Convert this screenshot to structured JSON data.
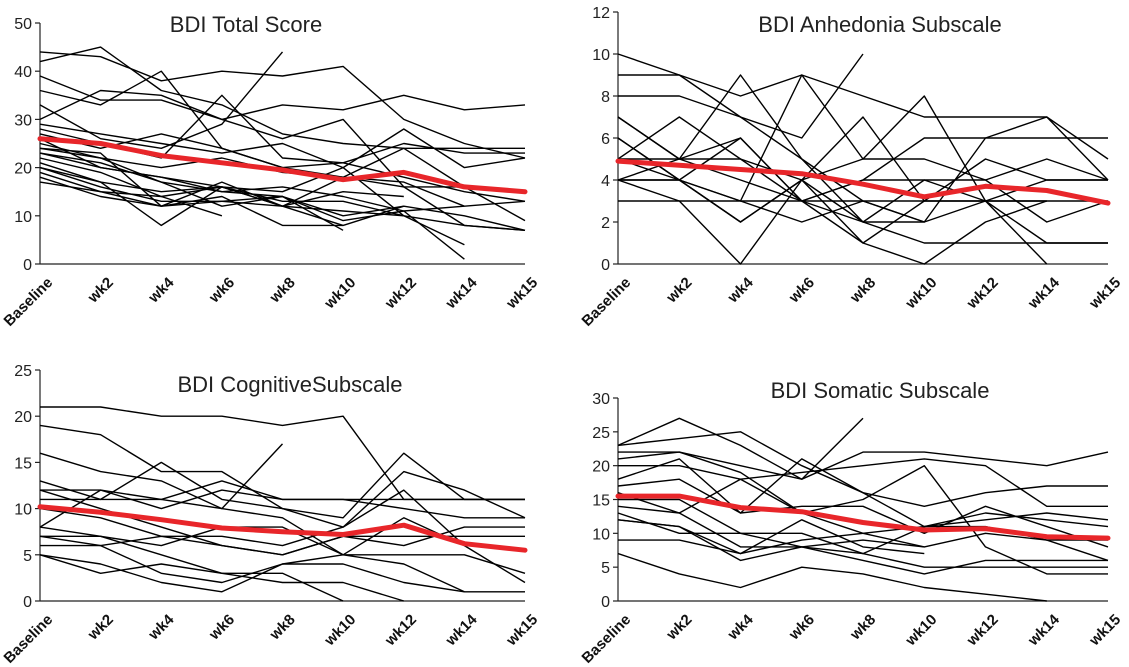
{
  "colors": {
    "individual": "#000000",
    "mean": "#e8262a"
  },
  "chart_data": [
    {
      "type": "line",
      "title": "BDI Total Score",
      "categories": [
        "Baseline",
        "wk2",
        "wk4",
        "wk6",
        "wk8",
        "wk10",
        "wk12",
        "wk14",
        "wk15"
      ],
      "ylim": [
        0,
        50
      ],
      "yticks": [
        0,
        10,
        20,
        30,
        40,
        50
      ],
      "mean": [
        26,
        25,
        22.5,
        21,
        19.5,
        17.5,
        19,
        16,
        15
      ],
      "series": [
        [
          44,
          43,
          38,
          40,
          39,
          41,
          30,
          25,
          22
        ],
        [
          42,
          45,
          36,
          33,
          27,
          25,
          24,
          24,
          24
        ],
        [
          39,
          34,
          34,
          30,
          26,
          30,
          16,
          8,
          7
        ],
        [
          36,
          33,
          40,
          24,
          20,
          21,
          25,
          23,
          23
        ],
        [
          33,
          26,
          24,
          29,
          44,
          null,
          null,
          null,
          null
        ],
        [
          30,
          36,
          35,
          30,
          33,
          32,
          35,
          32,
          33
        ],
        [
          29,
          27,
          25,
          23,
          25,
          20,
          28,
          20,
          22
        ],
        [
          28,
          25,
          22,
          35,
          22,
          21,
          18,
          15,
          13
        ],
        [
          27,
          24,
          27,
          24,
          20,
          18,
          24,
          16,
          9
        ],
        [
          26,
          20,
          18,
          15,
          14,
          10,
          12,
          10,
          7
        ],
        [
          25,
          22,
          20,
          22,
          19,
          18,
          17,
          12,
          null
        ],
        [
          24,
          22,
          17,
          12,
          14,
          9,
          11,
          12,
          13
        ],
        [
          24,
          23,
          12,
          17,
          12,
          18,
          16,
          16,
          15
        ],
        [
          23,
          20,
          18,
          16,
          13,
          13,
          10,
          8,
          7
        ],
        [
          22,
          19,
          14,
          10,
          null,
          null,
          null,
          null,
          null
        ],
        [
          21,
          17,
          15,
          16,
          12,
          11,
          10,
          null,
          null
        ],
        [
          20,
          17,
          8,
          16,
          12,
          8,
          12,
          null,
          null
        ],
        [
          20,
          16,
          13,
          13,
          12,
          15,
          14,
          null,
          null
        ],
        [
          19,
          15,
          12,
          14,
          8,
          8,
          null,
          null,
          null
        ],
        [
          18,
          14,
          12,
          13,
          14,
          7,
          null,
          null,
          null
        ],
        [
          17,
          15,
          14,
          16,
          15,
          20,
          10,
          4,
          null
        ],
        [
          23,
          21,
          17,
          15,
          16,
          14,
          11,
          1,
          null
        ]
      ]
    },
    {
      "type": "line",
      "title": "BDI Anhedonia Subscale",
      "categories": [
        "Baseline",
        "wk2",
        "wk4",
        "wk6",
        "wk8",
        "wk10",
        "wk12",
        "wk14",
        "wk15"
      ],
      "ylim": [
        0,
        12
      ],
      "yticks": [
        0,
        2,
        4,
        6,
        8,
        10,
        12
      ],
      "mean": [
        4.9,
        4.7,
        4.5,
        4.3,
        3.8,
        3.2,
        3.7,
        3.5,
        2.9
      ],
      "series": [
        [
          10,
          9,
          7,
          5,
          3,
          2,
          6,
          7,
          5
        ],
        [
          9,
          9,
          8,
          9,
          8,
          7,
          7,
          7,
          4
        ],
        [
          8,
          8,
          7,
          6,
          10,
          null,
          null,
          null,
          null
        ],
        [
          7,
          5,
          9,
          5,
          2,
          4,
          4,
          2,
          3
        ],
        [
          6,
          4,
          3,
          9,
          5,
          8,
          3,
          0,
          null
        ],
        [
          5,
          7,
          5,
          4,
          7,
          3,
          5,
          4,
          4
        ],
        [
          5,
          5,
          6,
          3,
          4,
          6,
          6,
          6,
          6
        ],
        [
          4,
          4,
          2,
          4,
          5,
          5,
          4,
          5,
          4
        ],
        [
          4,
          3,
          0,
          4,
          1,
          3,
          3,
          1,
          1
        ],
        [
          3,
          3,
          3,
          3,
          3,
          3,
          3,
          3,
          3
        ],
        [
          4,
          5,
          5,
          3,
          1,
          0,
          2,
          3,
          null
        ],
        [
          5,
          4,
          6,
          3,
          4,
          4,
          3,
          3,
          null
        ],
        [
          6,
          4,
          3,
          2,
          3,
          2,
          3,
          4,
          4
        ],
        [
          4,
          4,
          2,
          4,
          2,
          1,
          1,
          1,
          1
        ],
        [
          7,
          5,
          4,
          3,
          2,
          2,
          null,
          null,
          null
        ]
      ]
    },
    {
      "type": "line",
      "title": "BDI CognitiveSubscale",
      "categories": [
        "Baseline",
        "wk2",
        "wk4",
        "wk6",
        "wk8",
        "wk10",
        "wk12",
        "wk14",
        "wk15"
      ],
      "ylim": [
        0,
        25
      ],
      "yticks": [
        0,
        5,
        10,
        15,
        20,
        25
      ],
      "mean": [
        10.2,
        9.6,
        8.8,
        7.9,
        7.5,
        7.2,
        8.2,
        6.2,
        5.5
      ],
      "series": [
        [
          21,
          21,
          20,
          20,
          19,
          20,
          11,
          11,
          11
        ],
        [
          19,
          18,
          14,
          14,
          10,
          9,
          16,
          11,
          11
        ],
        [
          16,
          14,
          13,
          10,
          17,
          null,
          null,
          null,
          null
        ],
        [
          13,
          11,
          15,
          11,
          10,
          8,
          14,
          12,
          9
        ],
        [
          12,
          12,
          10,
          12,
          11,
          11,
          10,
          9,
          9
        ],
        [
          12,
          10,
          8,
          6,
          5,
          7,
          6,
          8,
          8
        ],
        [
          11,
          11,
          11,
          10,
          9,
          5,
          5,
          5,
          3
        ],
        [
          10,
          9,
          7,
          7,
          6,
          8,
          12,
          6,
          2
        ],
        [
          8,
          12,
          11,
          13,
          11,
          11,
          11,
          11,
          11
        ],
        [
          8,
          7,
          6,
          8,
          8,
          5,
          9,
          6,
          null
        ],
        [
          7,
          7,
          5,
          3,
          3,
          0,
          null,
          null,
          null
        ],
        [
          7,
          6,
          3,
          2,
          4,
          5,
          4,
          1,
          1
        ],
        [
          6,
          6,
          7,
          6,
          5,
          7,
          7,
          7,
          7
        ],
        [
          5,
          4,
          2,
          1,
          4,
          4,
          2,
          1,
          null
        ],
        [
          5,
          3,
          4,
          3,
          2,
          2,
          0,
          null,
          null
        ]
      ]
    },
    {
      "type": "line",
      "title": "BDI Somatic Subscale",
      "categories": [
        "Baseline",
        "wk2",
        "wk4",
        "wk6",
        "wk8",
        "wk10",
        "wk12",
        "wk14",
        "wk15"
      ],
      "ylim": [
        0,
        30
      ],
      "yticks": [
        0,
        5,
        10,
        15,
        20,
        25,
        30
      ],
      "mean": [
        15.5,
        15.5,
        13.8,
        13.2,
        11.6,
        10.5,
        10.7,
        9.5,
        9.3
      ],
      "series": [
        [
          23,
          27,
          23,
          18,
          22,
          22,
          21,
          20,
          22
        ],
        [
          23,
          24,
          25,
          20,
          16,
          14,
          16,
          17,
          17
        ],
        [
          22,
          22,
          20,
          18,
          27,
          null,
          null,
          null,
          null
        ],
        [
          21,
          22,
          19,
          13,
          15,
          20,
          8,
          4,
          4
        ],
        [
          20,
          20,
          18,
          19,
          20,
          21,
          20,
          14,
          14
        ],
        [
          18,
          21,
          13,
          14,
          14,
          10,
          14,
          11,
          8
        ],
        [
          17,
          18,
          13,
          21,
          16,
          11,
          12,
          13,
          12
        ],
        [
          16,
          13,
          18,
          13,
          10,
          8,
          10,
          9,
          6
        ],
        [
          15,
          15,
          10,
          10,
          7,
          11,
          11,
          9,
          9
        ],
        [
          14,
          13,
          8,
          8,
          7,
          5,
          5,
          5,
          5
        ],
        [
          13,
          10,
          10,
          8,
          6,
          4,
          6,
          6,
          6
        ],
        [
          12,
          11,
          6,
          8,
          9,
          8,
          null,
          null,
          null
        ],
        [
          12,
          11,
          7,
          12,
          8,
          7,
          null,
          null,
          null
        ],
        [
          9,
          9,
          7,
          9,
          10,
          11,
          13,
          12,
          11
        ],
        [
          7,
          4,
          2,
          5,
          4,
          2,
          1,
          0,
          null
        ]
      ]
    }
  ]
}
